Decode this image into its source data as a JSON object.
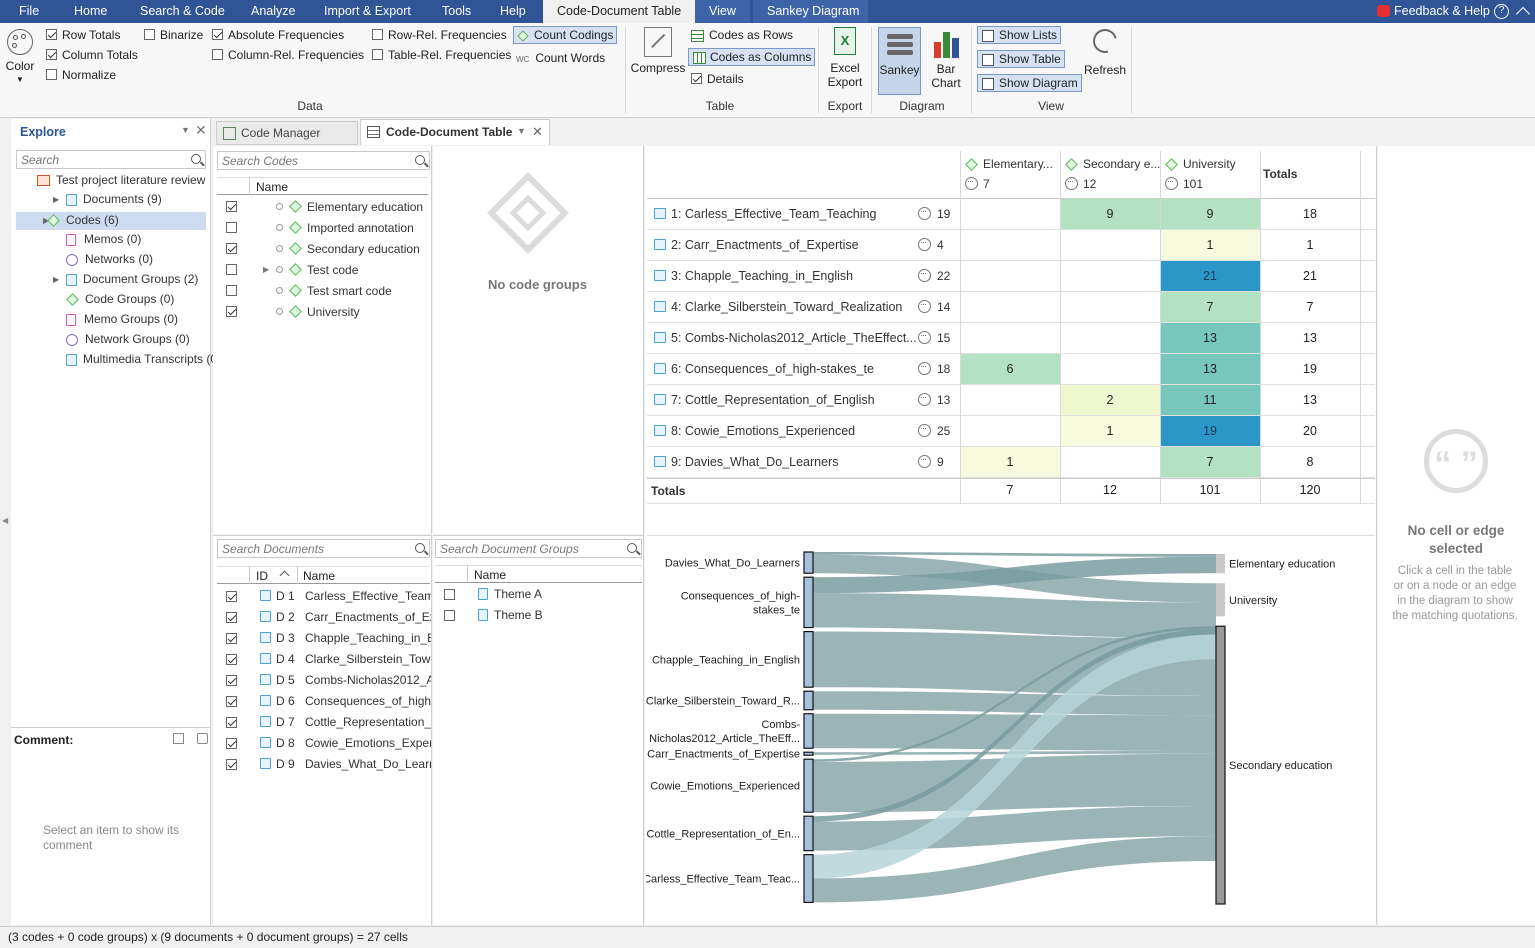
{
  "menu": {
    "file": "File",
    "home": "Home",
    "search_code": "Search & Code",
    "analyze": "Analyze",
    "import_export": "Import & Export",
    "tools": "Tools",
    "help": "Help",
    "cdt": "Code-Document Table",
    "view": "View",
    "sankey": "Sankey Diagram",
    "feedback": "Feedback & Help",
    "help_q": "?"
  },
  "ribbon": {
    "color": "Color",
    "row_totals": "Row Totals",
    "binarize": "Binarize",
    "column_totals": "Column Totals",
    "normalize": "Normalize",
    "abs_freq": "Absolute Frequencies",
    "col_rel": "Column-Rel. Frequencies",
    "row_rel": "Row-Rel. Frequencies",
    "table_rel": "Table-Rel. Frequencies",
    "count_codings": "Count Codings",
    "count_words": "Count Words",
    "wc": "WC",
    "data_group": "Data",
    "compress": "Compress",
    "codes_rows": "Codes as Rows",
    "codes_cols": "Codes as Columns",
    "details": "Details",
    "table_group": "Table",
    "excel_export": "Excel\nExport",
    "export_group": "Export",
    "sankey": "Sankey",
    "bar_chart": "Bar\nChart",
    "diagram_group": "Diagram",
    "show_lists": "Show Lists",
    "show_table": "Show Table",
    "show_diagram": "Show Diagram",
    "view_group": "View",
    "refresh": "Refresh"
  },
  "explore": {
    "title": "Explore",
    "search": "Search",
    "project": "Test project literature review",
    "items": [
      "Documents (9)",
      "Codes (6)",
      "Memos (0)",
      "Networks (0)",
      "Document Groups (2)",
      "Code Groups (0)",
      "Memo Groups (0)",
      "Network Groups (0)",
      "Multimedia Transcripts (0"
    ],
    "comment_label": "Comment:",
    "comment_hint": "Select an item to show its comment"
  },
  "tabs": {
    "code_manager": "Code Manager",
    "cdt": "Code-Document Table"
  },
  "codes": {
    "search": "Search Codes",
    "col_name": "Name",
    "items": [
      {
        "name": "Elementary education",
        "checked": true
      },
      {
        "name": "Imported annotation",
        "checked": false
      },
      {
        "name": "Secondary education",
        "checked": true
      },
      {
        "name": "Test code",
        "checked": false
      },
      {
        "name": "Test smart code",
        "checked": false
      },
      {
        "name": "University",
        "checked": true
      }
    ]
  },
  "code_groups": {
    "empty": "No code groups"
  },
  "docs": {
    "search": "Search Documents",
    "col_id": "ID",
    "col_name": "Name",
    "items": [
      {
        "id": "D 1",
        "name": "Carless_Effective_Team_"
      },
      {
        "id": "D 2",
        "name": "Carr_Enactments_of_Exp"
      },
      {
        "id": "D 3",
        "name": "Chapple_Teaching_in_Er"
      },
      {
        "id": "D 4",
        "name": "Clarke_Silberstein_Towa"
      },
      {
        "id": "D 5",
        "name": "Combs-Nicholas2012_A"
      },
      {
        "id": "D 6",
        "name": "Consequences_of_high-"
      },
      {
        "id": "D 7",
        "name": "Cottle_Representation_c"
      },
      {
        "id": "D 8",
        "name": "Cowie_Emotions_Experi"
      },
      {
        "id": "D 9",
        "name": "Davies_What_Do_Learne"
      }
    ]
  },
  "doc_groups": {
    "search": "Search Document Groups",
    "col_name": "Name",
    "items": [
      "Theme A",
      "Theme B"
    ]
  },
  "matrix": {
    "columns": [
      {
        "name": "Elementary...",
        "count": "7"
      },
      {
        "name": "Secondary e...",
        "count": "12"
      },
      {
        "name": "University",
        "count": "101"
      }
    ],
    "totals_label": "Totals",
    "rows": [
      {
        "name": "1: Carless_Effective_Team_Teaching",
        "q": "19",
        "cells": [
          "",
          "9",
          "9"
        ],
        "total": "18"
      },
      {
        "name": "2: Carr_Enactments_of_Expertise",
        "q": "4",
        "cells": [
          "",
          "",
          "1"
        ],
        "total": "1"
      },
      {
        "name": "3: Chapple_Teaching_in_English",
        "q": "22",
        "cells": [
          "",
          "",
          "21"
        ],
        "total": "21"
      },
      {
        "name": "4: Clarke_Silberstein_Toward_Realization",
        "q": "14",
        "cells": [
          "",
          "",
          "7"
        ],
        "total": "7"
      },
      {
        "name": "5: Combs-Nicholas2012_Article_TheEffect...",
        "q": "15",
        "cells": [
          "",
          "",
          "13"
        ],
        "total": "13"
      },
      {
        "name": "6: Consequences_of_high-stakes_te",
        "q": "18",
        "cells": [
          "6",
          "",
          "13"
        ],
        "total": "19"
      },
      {
        "name": "7: Cottle_Representation_of_English",
        "q": "13",
        "cells": [
          "",
          "2",
          "11"
        ],
        "total": "13"
      },
      {
        "name": "8: Cowie_Emotions_Experienced",
        "q": "25",
        "cells": [
          "",
          "1",
          "19"
        ],
        "total": "20"
      },
      {
        "name": "9: Davies_What_Do_Learners",
        "q": "9",
        "cells": [
          "1",
          "",
          "7"
        ],
        "total": "8"
      }
    ],
    "totals": [
      "7",
      "12",
      "101",
      "120"
    ]
  },
  "sankey": {
    "left": [
      "Davies_What_Do_Learners",
      "Consequences_of_high-\nstakes_te",
      "Chapple_Teaching_in_English",
      "Clarke_Silberstein_Toward_R...",
      "Combs-\nNicholas2012_Article_TheEff...",
      "Carr_Enactments_of_Expertise",
      "Cowie_Emotions_Experienced",
      "Cottle_Representation_of_En...",
      "Carless_Effective_Team_Teac..."
    ],
    "right": [
      "Elementary education",
      "University",
      "Secondary education"
    ]
  },
  "side": {
    "title": "No cell or edge selected",
    "hint": "Click a cell in the table or on a node or an edge in the diagram to show the matching quotations."
  },
  "status": "(3 codes + 0 code groups) x (9 documents + 0 document groups) = 27 cells",
  "colors": {
    "menubar": "#2f5597",
    "sankey_flow": "#7a9c9f",
    "heat_high": "#2e9ac8",
    "heat_mid": "#7ecbc0",
    "heat_low": "#f4f8d7"
  }
}
